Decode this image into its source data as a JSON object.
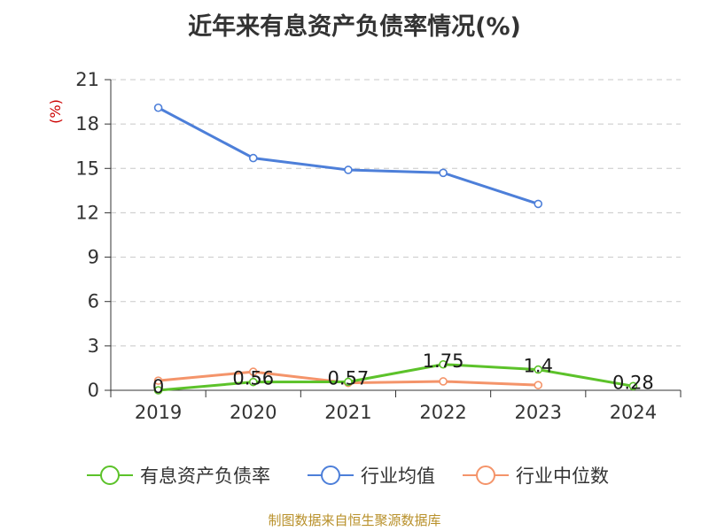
{
  "chart_data": {
    "type": "line",
    "title": "近年来有息资产负债率情况(%)",
    "ylabel": "(%)",
    "x": [
      "2019",
      "2020",
      "2021",
      "2022",
      "2023",
      "2024"
    ],
    "ylim": [
      0,
      21
    ],
    "yticks": [
      "0",
      "3",
      "6",
      "9",
      "12",
      "15",
      "18",
      "21"
    ],
    "grid": true,
    "legend_position": "bottom",
    "series": [
      {
        "name": "有息资产负债率",
        "color": "#5cc22a",
        "values": [
          0,
          0.56,
          0.57,
          1.75,
          1.4,
          0.28
        ],
        "labels": [
          "0",
          "0.56",
          "0.57",
          "1.75",
          "1.4",
          "0.28"
        ]
      },
      {
        "name": "行业均值",
        "color": "#4d7fd9",
        "values": [
          19.1,
          15.7,
          14.9,
          14.7,
          12.6,
          null
        ]
      },
      {
        "name": "行业中位数",
        "color": "#f4946a",
        "values": [
          0.65,
          1.25,
          0.5,
          0.6,
          0.35,
          null
        ]
      }
    ]
  },
  "footer": {
    "source": "制图数据来自恒生聚源数据库"
  }
}
